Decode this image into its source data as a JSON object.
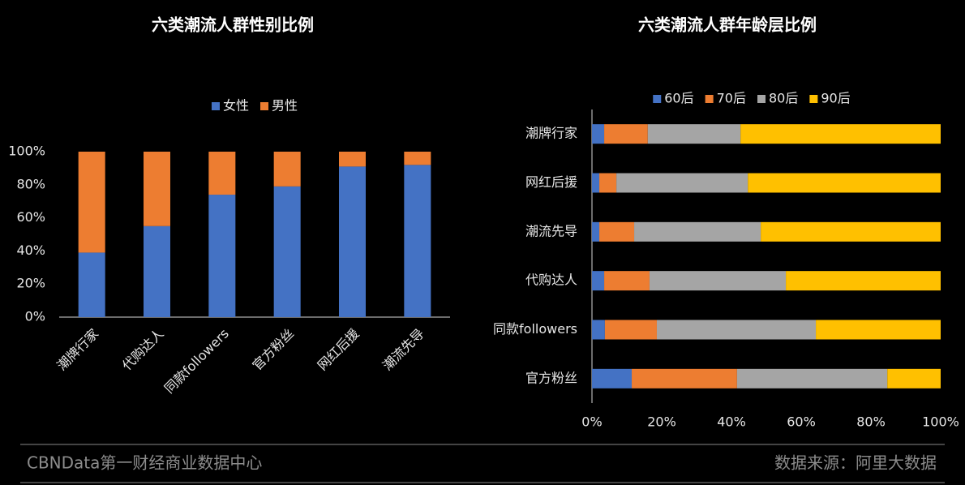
{
  "chart_data": [
    {
      "type": "bar",
      "stacked": true,
      "title": "六类潮流人群性别比例",
      "legend": "top",
      "categories": [
        "潮牌行家",
        "代购达人",
        "同款followers",
        "官方粉丝",
        "网红后援",
        "潮流先导"
      ],
      "series": [
        {
          "name": "女性",
          "color": "#4472c4",
          "values": [
            39,
            55,
            74,
            79,
            91,
            92
          ]
        },
        {
          "name": "男性",
          "color": "#ed7d31",
          "values": [
            61,
            45,
            26,
            21,
            9,
            8
          ]
        }
      ],
      "ylim": [
        0,
        100
      ],
      "yticks": [
        {
          "value": 0,
          "label": "0%"
        },
        {
          "value": 20,
          "label": "20%"
        },
        {
          "value": 40,
          "label": "40%"
        },
        {
          "value": 60,
          "label": "60%"
        },
        {
          "value": 80,
          "label": "80%"
        },
        {
          "value": 100,
          "label": "100%"
        }
      ]
    },
    {
      "type": "barh",
      "stacked": true,
      "title": "六类潮流人群年龄层比例",
      "legend": "top",
      "categories": [
        "潮牌行家",
        "网红后援",
        "潮流先导",
        "代购达人",
        "同款followers",
        "官方粉丝"
      ],
      "series": [
        {
          "name": "60后",
          "color": "#4472c4",
          "values": [
            3.5,
            2.1,
            2.1,
            3.5,
            3.7,
            11.4
          ]
        },
        {
          "name": "70后",
          "color": "#ed7d31",
          "values": [
            12.5,
            4.9,
            10.0,
            13.0,
            14.9,
            30.2
          ]
        },
        {
          "name": "80后",
          "color": "#a5a5a5",
          "values": [
            26.6,
            37.7,
            36.3,
            39.1,
            45.6,
            43.1
          ]
        },
        {
          "name": "90后",
          "color": "#ffc000",
          "values": [
            57.4,
            55.3,
            51.6,
            44.4,
            35.8,
            15.3
          ]
        }
      ],
      "xlim": [
        0,
        100
      ],
      "xticks": [
        {
          "value": 0,
          "label": "0%"
        },
        {
          "value": 20,
          "label": "20%"
        },
        {
          "value": 40,
          "label": "40%"
        },
        {
          "value": 60,
          "label": "60%"
        },
        {
          "value": 80,
          "label": "80%"
        },
        {
          "value": 100,
          "label": "100%"
        }
      ]
    }
  ],
  "footer": {
    "left": "CBNData第一财经商业数据中心",
    "right": "数据来源：阿里大数据"
  }
}
